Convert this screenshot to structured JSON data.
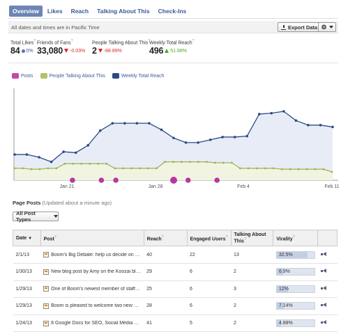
{
  "tabs": [
    {
      "label": "Overview",
      "active": true
    },
    {
      "label": "Likes",
      "active": false
    },
    {
      "label": "Reach",
      "active": false
    },
    {
      "label": "Talking About This",
      "active": false
    },
    {
      "label": "Check-Ins",
      "active": false
    }
  ],
  "infobar": {
    "note": "All dates and times are in Pacific Time",
    "export_label": "Export Data",
    "settings_icon": "gear-icon"
  },
  "stats": [
    {
      "label": "Total Likes",
      "help": "?",
      "value": "84",
      "change": "0%",
      "trend": "neutral"
    },
    {
      "label": "Friends of Fans",
      "help": "?",
      "value": "33,080",
      "change": "-0.03%",
      "trend": "down"
    },
    {
      "label": "People Talking About This",
      "help": "?",
      "value": "2",
      "change": "-88.89%",
      "trend": "down"
    },
    {
      "label": "Weekly Total Reach",
      "help": "?",
      "value": "496",
      "change": "51.68%",
      "trend": "up"
    }
  ],
  "colors": {
    "posts": "#b8389e",
    "talking": "#9cb04f",
    "reach": "#2b4a86",
    "reach_fill": "#e8ecf6",
    "talking_fill": "#f2f4e2",
    "accent": "#3b5998"
  },
  "chart_data": {
    "type": "line",
    "x_labels": [
      "Jan 21",
      "Jan 28",
      "Feb 4",
      "Feb 11"
    ],
    "legend_placement": "top-left",
    "series": [
      {
        "name": "Posts",
        "kind": "bubble",
        "points": [
          {
            "x": 4,
            "size": 1
          },
          {
            "x": 6,
            "size": 1
          },
          {
            "x": 7,
            "size": 1
          },
          {
            "x": 11,
            "size": 2
          },
          {
            "x": 12,
            "size": 1
          },
          {
            "x": 14,
            "size": 1
          }
        ]
      },
      {
        "name": "People Talking About This",
        "kind": "line",
        "values": [
          13,
          13,
          12,
          12,
          13,
          13,
          18,
          18,
          18,
          18,
          18,
          18,
          13,
          13,
          13,
          13,
          13,
          13,
          20,
          20,
          20,
          20,
          20,
          20,
          19,
          19,
          19,
          13,
          13,
          13,
          13,
          13,
          12,
          12,
          12,
          12,
          12,
          12,
          9
        ]
      },
      {
        "name": "Weekly Total Reach",
        "kind": "area",
        "values": [
          28,
          28,
          25,
          20,
          31,
          30,
          38,
          54,
          62,
          62,
          62,
          62,
          55,
          46,
          41,
          41,
          44,
          47,
          47,
          48,
          72,
          73,
          75,
          65,
          60,
          60,
          58
        ]
      }
    ],
    "y_range": [
      0,
      100
    ]
  },
  "posts_section": {
    "title": "Page Posts",
    "subtitle": "(Updated about a minute ago)",
    "filter_label": "All Post Types"
  },
  "table": {
    "headers": [
      "Date",
      "Post",
      "Reach",
      "Engaged Users",
      "Talking About This",
      "Virality"
    ],
    "rows": [
      {
        "date": "2/1/13",
        "post": "Boom's Big Debate: help us decide on the ...",
        "reach": "40",
        "engaged": "22",
        "talking": "13",
        "virality": "32.5%",
        "virality_value": 0.325
      },
      {
        "date": "1/30/13",
        "post": "New blog post by Amy on the Koozai blog ...",
        "reach": "29",
        "engaged": "6",
        "talking": "2",
        "virality": "6.9%",
        "virality_value": 0.069
      },
      {
        "date": "1/29/13",
        "post": "One of Boom's newest member of staff, G...",
        "reach": "25",
        "engaged": "6",
        "talking": "3",
        "virality": "12%",
        "virality_value": 0.12
      },
      {
        "date": "1/29/13",
        "post": "Boom is pleased to welcome two new addi...",
        "reach": "28",
        "engaged": "6",
        "talking": "2",
        "virality": "7.14%",
        "virality_value": 0.0714
      },
      {
        "date": "1/24/13",
        "post": "8 Google Docs for SEO, Social Media and ...",
        "reach": "41",
        "engaged": "5",
        "talking": "2",
        "virality": "4.88%",
        "virality_value": 0.0488
      }
    ]
  }
}
